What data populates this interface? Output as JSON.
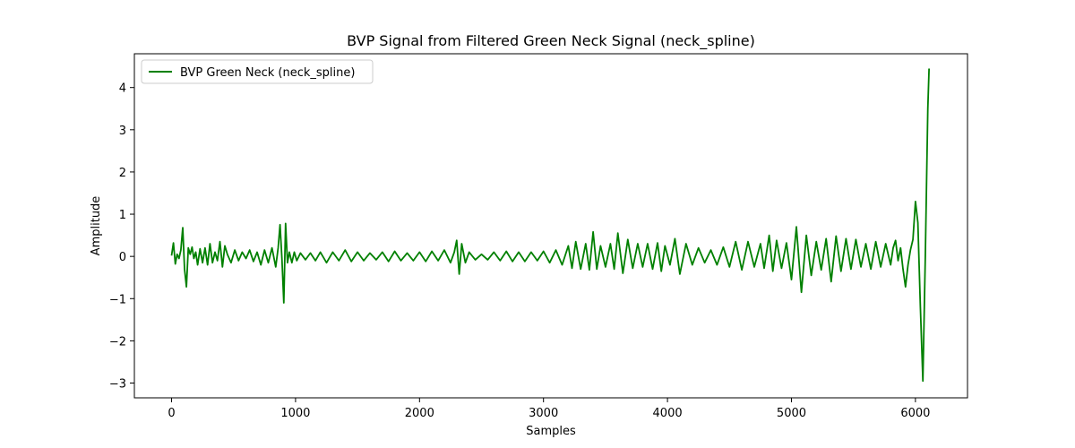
{
  "chart_data": {
    "type": "line",
    "title": "BVP Signal from Filtered Green Neck Signal (neck_spline)",
    "xlabel": "Samples",
    "ylabel": "Amplitude",
    "xlim": [
      -300,
      6420
    ],
    "ylim": [
      -3.35,
      4.8
    ],
    "xticks": [
      0,
      1000,
      2000,
      3000,
      4000,
      5000,
      6000
    ],
    "yticks": [
      -3,
      -2,
      -1,
      0,
      1,
      2,
      3,
      4
    ],
    "xtick_labels": [
      "0",
      "1000",
      "2000",
      "3000",
      "4000",
      "5000",
      "6000"
    ],
    "ytick_labels": [
      "−3",
      "−2",
      "−1",
      "0",
      "1",
      "2",
      "3",
      "4"
    ],
    "grid": false,
    "legend_position": "top-left",
    "series": [
      {
        "name": "BVP Green Neck (neck_spline)",
        "color": "#008000",
        "x": [
          0,
          15,
          30,
          45,
          60,
          75,
          90,
          105,
          120,
          135,
          150,
          165,
          180,
          195,
          210,
          230,
          250,
          270,
          290,
          310,
          330,
          350,
          370,
          390,
          410,
          430,
          450,
          480,
          510,
          540,
          570,
          600,
          630,
          660,
          690,
          720,
          750,
          780,
          810,
          840,
          860,
          875,
          890,
          905,
          920,
          935,
          950,
          970,
          990,
          1010,
          1040,
          1080,
          1120,
          1160,
          1200,
          1250,
          1300,
          1350,
          1400,
          1450,
          1500,
          1550,
          1600,
          1650,
          1700,
          1750,
          1800,
          1850,
          1900,
          1950,
          2000,
          2050,
          2100,
          2150,
          2200,
          2250,
          2280,
          2300,
          2320,
          2340,
          2370,
          2400,
          2450,
          2500,
          2550,
          2600,
          2650,
          2700,
          2750,
          2800,
          2850,
          2900,
          2950,
          3000,
          3050,
          3100,
          3150,
          3200,
          3230,
          3260,
          3300,
          3340,
          3370,
          3400,
          3430,
          3460,
          3500,
          3540,
          3570,
          3600,
          3640,
          3680,
          3720,
          3760,
          3800,
          3840,
          3880,
          3920,
          3950,
          3980,
          4020,
          4060,
          4100,
          4150,
          4200,
          4250,
          4300,
          4350,
          4400,
          4450,
          4500,
          4550,
          4600,
          4650,
          4700,
          4750,
          4780,
          4820,
          4850,
          4880,
          4920,
          4960,
          5000,
          5040,
          5080,
          5120,
          5160,
          5200,
          5240,
          5280,
          5320,
          5360,
          5400,
          5440,
          5480,
          5520,
          5560,
          5600,
          5640,
          5680,
          5720,
          5760,
          5800,
          5820,
          5840,
          5860,
          5880,
          5900,
          5920,
          5940,
          5960,
          5980,
          6000,
          6020,
          6040,
          6060,
          6080,
          6100,
          6110
        ],
        "y": [
          0.02,
          0.32,
          -0.18,
          0.05,
          -0.05,
          0.15,
          0.68,
          -0.3,
          -0.72,
          0.2,
          0.05,
          0.22,
          -0.05,
          0.1,
          -0.2,
          0.18,
          -0.15,
          0.2,
          -0.2,
          0.3,
          -0.15,
          0.1,
          -0.1,
          0.35,
          -0.25,
          0.25,
          0.05,
          -0.15,
          0.15,
          -0.1,
          0.1,
          -0.05,
          0.15,
          -0.12,
          0.1,
          -0.2,
          0.15,
          -0.15,
          0.2,
          -0.25,
          0.2,
          0.75,
          -0.05,
          -1.1,
          0.78,
          -0.15,
          0.1,
          -0.15,
          0.1,
          -0.1,
          0.08,
          -0.08,
          0.08,
          -0.1,
          0.1,
          -0.15,
          0.1,
          -0.1,
          0.15,
          -0.12,
          0.1,
          -0.1,
          0.08,
          -0.08,
          0.1,
          -0.12,
          0.12,
          -0.1,
          0.08,
          -0.1,
          0.1,
          -0.12,
          0.12,
          -0.1,
          0.15,
          -0.15,
          0.1,
          0.38,
          -0.42,
          0.3,
          -0.15,
          0.1,
          -0.08,
          0.05,
          -0.08,
          0.1,
          -0.1,
          0.12,
          -0.12,
          0.1,
          -0.12,
          0.1,
          -0.1,
          0.12,
          -0.15,
          0.15,
          -0.2,
          0.25,
          -0.28,
          0.35,
          -0.3,
          0.3,
          -0.32,
          0.58,
          -0.3,
          0.25,
          -0.25,
          0.3,
          -0.3,
          0.55,
          -0.4,
          0.4,
          -0.28,
          0.3,
          -0.25,
          0.3,
          -0.3,
          0.32,
          -0.35,
          0.25,
          -0.2,
          0.42,
          -0.42,
          0.3,
          -0.2,
          0.2,
          -0.15,
          0.15,
          -0.2,
          0.22,
          -0.25,
          0.35,
          -0.32,
          0.35,
          -0.25,
          0.3,
          -0.28,
          0.5,
          -0.35,
          0.38,
          -0.28,
          0.32,
          -0.55,
          0.7,
          -0.85,
          0.5,
          -0.45,
          0.35,
          -0.32,
          0.42,
          -0.6,
          0.48,
          -0.35,
          0.42,
          -0.3,
          0.4,
          -0.25,
          0.3,
          -0.3,
          0.35,
          -0.25,
          0.3,
          -0.2,
          0.2,
          0.38,
          -0.1,
          0.2,
          -0.3,
          -0.72,
          -0.2,
          0.15,
          0.4,
          1.3,
          0.8,
          -1.2,
          -2.95,
          0.0,
          3.5,
          4.45
        ]
      }
    ]
  }
}
